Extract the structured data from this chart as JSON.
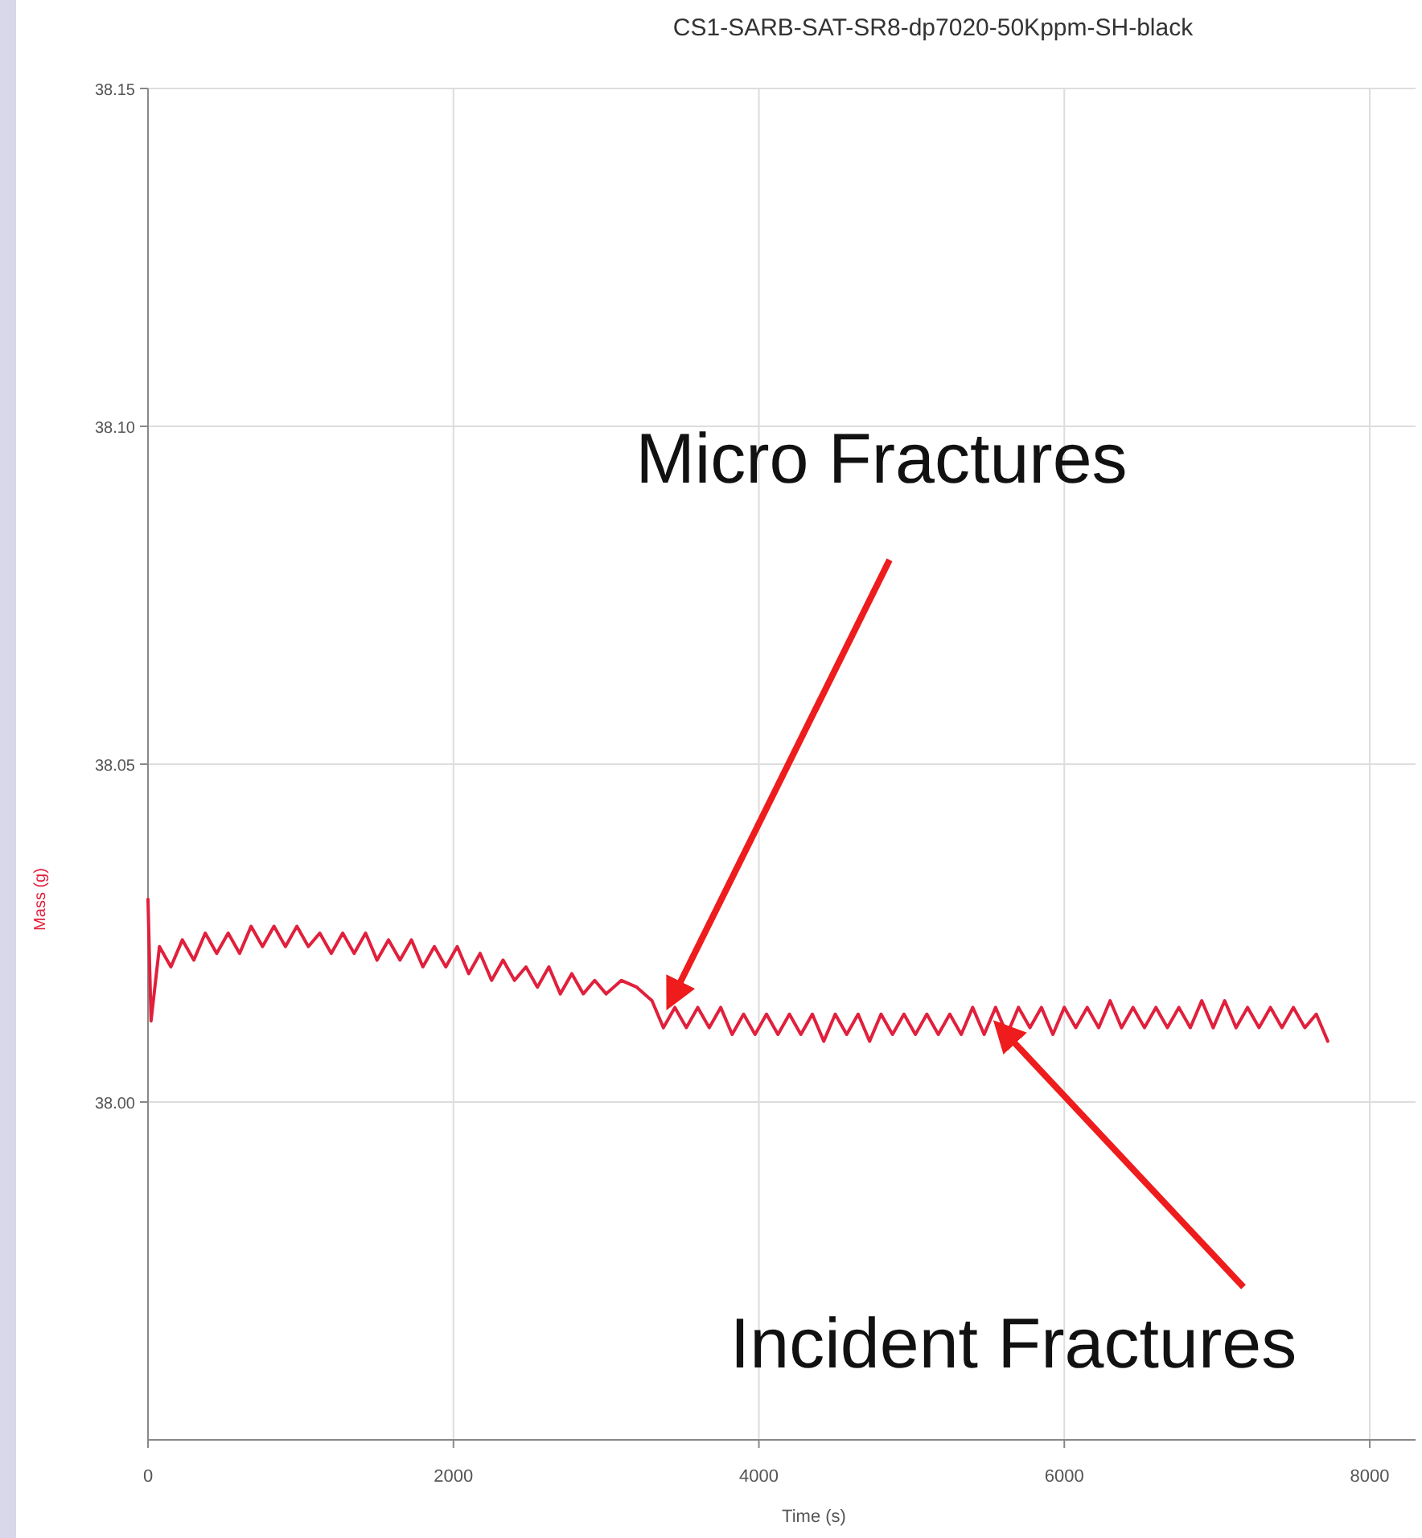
{
  "chart_data": {
    "type": "line",
    "title": "CS1-SARB-SAT-SR8-dp7020-50Kppm-SH-black",
    "xlabel": "Time (s)",
    "ylabel": "Mass (g)",
    "xlim": [
      0,
      8300
    ],
    "xticks": [
      0,
      2000,
      4000,
      6000,
      8000
    ],
    "ylim": [
      37.95,
      38.15
    ],
    "yticks": [
      {
        "value": 38.0,
        "label": "38.00"
      },
      {
        "value": 38.05,
        "label": "38.05"
      },
      {
        "value": 38.1,
        "label": "38.10"
      },
      {
        "value": 38.15,
        "label": "38.15"
      }
    ],
    "grid": true,
    "marker": "none",
    "line_style": "solid",
    "annotations": [
      {
        "text": "Micro Fractures",
        "x": 3350,
        "y": 38.013
      },
      {
        "text": "Incident Fractures",
        "x": 5500,
        "y": 38.01
      }
    ],
    "series": [
      {
        "color": "#e0203c",
        "x": [
          0,
          20,
          75,
          150,
          225,
          300,
          375,
          450,
          525,
          600,
          675,
          750,
          825,
          900,
          975,
          1050,
          1125,
          1200,
          1275,
          1350,
          1425,
          1500,
          1575,
          1650,
          1725,
          1800,
          1875,
          1950,
          2025,
          2100,
          2175,
          2250,
          2325,
          2400,
          2475,
          2550,
          2625,
          2700,
          2775,
          2850,
          2925,
          3000,
          3100,
          3200,
          3300,
          3375,
          3450,
          3525,
          3600,
          3675,
          3750,
          3825,
          3900,
          3975,
          4050,
          4125,
          4200,
          4275,
          4350,
          4425,
          4500,
          4575,
          4650,
          4725,
          4800,
          4875,
          4950,
          5025,
          5100,
          5175,
          5250,
          5325,
          5400,
          5475,
          5550,
          5625,
          5700,
          5775,
          5850,
          5925,
          6000,
          6075,
          6150,
          6225,
          6300,
          6375,
          6450,
          6525,
          6600,
          6675,
          6750,
          6825,
          6900,
          6975,
          7050,
          7125,
          7200,
          7275,
          7350,
          7425,
          7500,
          7575,
          7650,
          7725
        ],
        "values": [
          38.03,
          38.012,
          38.023,
          38.02,
          38.024,
          38.021,
          38.025,
          38.022,
          38.025,
          38.022,
          38.026,
          38.023,
          38.026,
          38.023,
          38.026,
          38.023,
          38.025,
          38.022,
          38.025,
          38.022,
          38.025,
          38.021,
          38.024,
          38.021,
          38.024,
          38.02,
          38.023,
          38.02,
          38.023,
          38.019,
          38.022,
          38.018,
          38.021,
          38.018,
          38.02,
          38.017,
          38.02,
          38.016,
          38.019,
          38.016,
          38.018,
          38.016,
          38.018,
          38.017,
          38.015,
          38.011,
          38.014,
          38.011,
          38.014,
          38.011,
          38.014,
          38.01,
          38.013,
          38.01,
          38.013,
          38.01,
          38.013,
          38.01,
          38.013,
          38.009,
          38.013,
          38.01,
          38.013,
          38.009,
          38.013,
          38.01,
          38.013,
          38.01,
          38.013,
          38.01,
          38.013,
          38.01,
          38.014,
          38.01,
          38.014,
          38.01,
          38.014,
          38.011,
          38.014,
          38.01,
          38.014,
          38.011,
          38.014,
          38.011,
          38.015,
          38.011,
          38.014,
          38.011,
          38.014,
          38.011,
          38.014,
          38.011,
          38.015,
          38.011,
          38.015,
          38.011,
          38.014,
          38.011,
          38.014,
          38.011,
          38.014,
          38.011,
          38.013,
          38.009
        ]
      }
    ]
  }
}
